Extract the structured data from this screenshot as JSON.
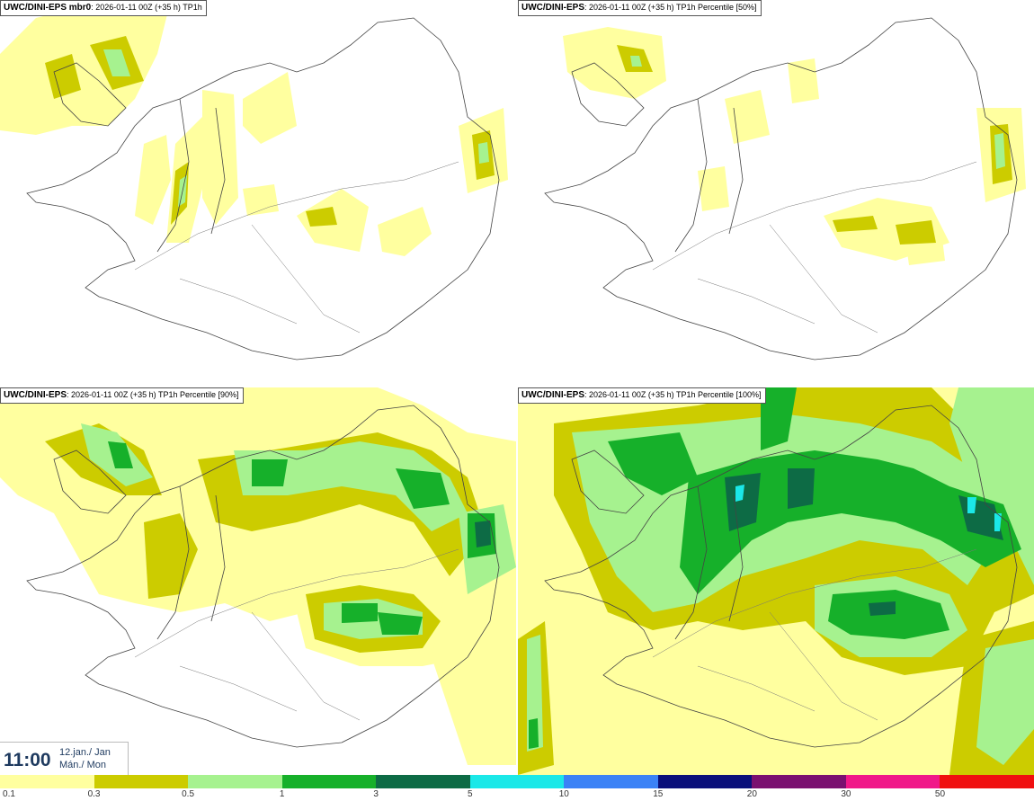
{
  "panels": [
    {
      "model": "UWC/DINI-EPS mbr0",
      "info": ": 2026-01-11 00Z (+35 h) TP1h"
    },
    {
      "model": "UWC/DINI-EPS",
      "info": ": 2026-01-11 00Z (+35 h) TP1h Percentile [50%]"
    },
    {
      "model": "UWC/DINI-EPS",
      "info": ": 2026-01-11 00Z (+35 h) TP1h Percentile [90%]"
    },
    {
      "model": "UWC/DINI-EPS",
      "info": ": 2026-01-11 00Z (+35 h) TP1h Percentile [100%]"
    }
  ],
  "valid_time": {
    "time": "11:00",
    "date_line1": "12.jan./ Jan",
    "date_line2": "Mán./ Mon"
  },
  "legend": {
    "colors": [
      "#ffff9f",
      "#cccc00",
      "#a6f28f",
      "#16b02a",
      "#0d6b45",
      "#1be8e8",
      "#3b82f6",
      "#0a0f7a",
      "#7a1070",
      "#f01889",
      "#f01010"
    ],
    "ticks": [
      "0.1",
      "0.3",
      "0.5",
      "1",
      "3",
      "5",
      "10",
      "15",
      "20",
      "30",
      "50"
    ]
  }
}
